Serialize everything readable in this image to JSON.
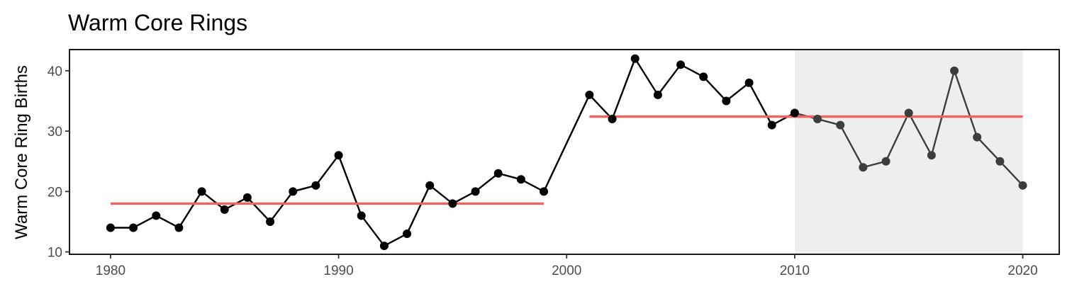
{
  "chart_data": {
    "type": "line",
    "title": "Warm Core Rings",
    "xlabel": "",
    "ylabel": "Warm Core Ring Births",
    "xlim": [
      1978.2,
      2021.6
    ],
    "ylim": [
      9.6,
      43.5
    ],
    "x_ticks": [
      1980,
      1990,
      2000,
      2010,
      2020
    ],
    "y_ticks": [
      10,
      20,
      30,
      40
    ],
    "grid": false,
    "legend": "none",
    "colors": {
      "series": "#000000",
      "highlight_series": "#3d3d3d",
      "mean_line": "#ee6461",
      "highlight_region": "#eeeeee",
      "axis": "#000000",
      "tick_text": "#4d4d4d"
    },
    "series": [
      {
        "x": [
          1980,
          1981,
          1982,
          1983,
          1984,
          1985,
          1986,
          1987,
          1988,
          1989,
          1990,
          1991,
          1992,
          1993,
          1994,
          1995,
          1996,
          1997,
          1998,
          1999,
          2001,
          2002,
          2003,
          2004,
          2005,
          2006,
          2007,
          2008,
          2009,
          2010,
          2011,
          2012,
          2013,
          2014,
          2015,
          2016,
          2017,
          2018,
          2019,
          2020
        ],
        "values": [
          14,
          14,
          16,
          14,
          20,
          17,
          19,
          15,
          20,
          21,
          26,
          16,
          11,
          13,
          21,
          18,
          20,
          23,
          22,
          20,
          36,
          32,
          42,
          36,
          41,
          39,
          35,
          38,
          31,
          33,
          32,
          31,
          24,
          25,
          33,
          26,
          40,
          29,
          25,
          21
        ]
      }
    ],
    "highlight_region": {
      "x": [
        2010,
        2020
      ]
    },
    "mean_lines": [
      {
        "x": [
          1980,
          1999
        ],
        "value": 18
      },
      {
        "x": [
          2001,
          2020
        ],
        "value": 32.4
      }
    ]
  }
}
